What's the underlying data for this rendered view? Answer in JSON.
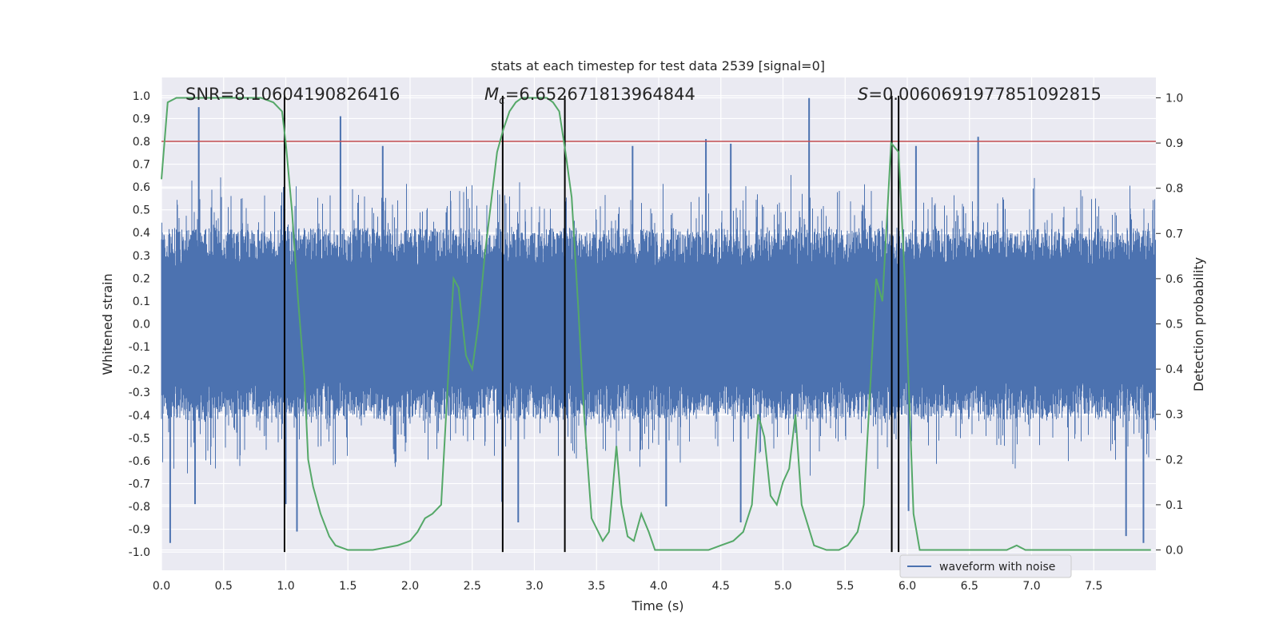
{
  "chart_data": {
    "type": "line",
    "title": "stats at each timestep for test data 2539 [signal=0]",
    "xlabel": "Time (s)",
    "ylabel": "Whitened strain",
    "y2label": "Detection probability",
    "xlim": [
      0,
      8.0
    ],
    "ylim": [
      -1.08,
      1.08
    ],
    "y2lim": [
      -0.045,
      1.045
    ],
    "x_ticks": [
      "0.0",
      "0.5",
      "1.0",
      "1.5",
      "2.0",
      "2.5",
      "3.0",
      "3.5",
      "4.0",
      "4.5",
      "5.0",
      "5.5",
      "6.0",
      "6.5",
      "7.0",
      "7.5"
    ],
    "y_ticks": [
      "1.0",
      "0.9",
      "0.8",
      "0.7",
      "0.6",
      "0.5",
      "0.4",
      "0.3",
      "0.2",
      "0.1",
      "0.0",
      "-0.1",
      "-0.2",
      "-0.3",
      "-0.4",
      "-0.5",
      "-0.6",
      "-0.7",
      "-0.8",
      "-0.9",
      "-1.0"
    ],
    "y2_ticks": [
      "1.0",
      "0.9",
      "0.8",
      "0.7",
      "0.6",
      "0.5",
      "0.4",
      "0.3",
      "0.2",
      "0.1",
      "0.0"
    ],
    "annotations": {
      "snr": "SNR=8.10604190826416",
      "mc_symbol": "M",
      "mc_sub": "c",
      "mc_value": "=6.652671813964844",
      "s_symbol": "S",
      "s_value": "=0.0060691977851092815"
    },
    "threshold": {
      "value": 0.8,
      "color": "#c44e52"
    },
    "vertical_lines": [
      0.99,
      2.745,
      3.245,
      5.875,
      5.93
    ],
    "legend": {
      "label": "waveform with noise",
      "position": "lower-right"
    },
    "grid": true,
    "colors": {
      "waveform": "#4c72b0",
      "probability": "#55a868",
      "threshold": "#c44e52",
      "vlines": "#000000",
      "background": "#eaeaf2"
    },
    "series": [
      {
        "name": "waveform with noise",
        "sampled": true,
        "seed": 2539,
        "amplitude_bulk": 0.22,
        "peaks": [
          [
            0.3,
            0.95
          ],
          [
            0.07,
            -0.96
          ],
          [
            0.27,
            -0.79
          ],
          [
            1.09,
            -0.91
          ],
          [
            1.44,
            0.91
          ],
          [
            1.0,
            -0.79
          ],
          [
            1.78,
            0.78
          ],
          [
            2.87,
            -0.87
          ],
          [
            3.79,
            0.78
          ],
          [
            4.06,
            -0.8
          ],
          [
            4.38,
            0.81
          ],
          [
            4.58,
            0.79
          ],
          [
            4.66,
            -0.87
          ],
          [
            5.21,
            0.99
          ],
          [
            6.01,
            -0.82
          ],
          [
            6.57,
            0.82
          ],
          [
            7.76,
            -0.93
          ],
          [
            7.9,
            -0.96
          ],
          [
            6.07,
            0.78
          ],
          [
            2.74,
            -0.78
          ]
        ]
      },
      {
        "name": "",
        "x": [
          0.0,
          0.05,
          0.12,
          0.3,
          0.5,
          0.7,
          0.8,
          0.9,
          0.97,
          1.0,
          1.05,
          1.1,
          1.15,
          1.18,
          1.22,
          1.28,
          1.35,
          1.4,
          1.5,
          1.7,
          1.9,
          2.0,
          2.06,
          2.12,
          2.18,
          2.25,
          2.3,
          2.35,
          2.39,
          2.45,
          2.5,
          2.55,
          2.6,
          2.7,
          2.75,
          2.8,
          2.85,
          2.9,
          2.95,
          3.0,
          3.1,
          3.15,
          3.2,
          3.25,
          3.3,
          3.35,
          3.4,
          3.46,
          3.55,
          3.6,
          3.66,
          3.7,
          3.75,
          3.8,
          3.86,
          3.92,
          3.97,
          4.02,
          4.1,
          4.2,
          4.4,
          4.5,
          4.6,
          4.68,
          4.75,
          4.8,
          4.85,
          4.9,
          4.95,
          5.0,
          5.05,
          5.1,
          5.15,
          5.25,
          5.35,
          5.45,
          5.52,
          5.6,
          5.65,
          5.75,
          5.8,
          5.87,
          5.93,
          5.98,
          6.05,
          6.1,
          6.2,
          6.4,
          6.6,
          6.8,
          6.88,
          6.95,
          7.1,
          7.3,
          7.5,
          7.6,
          7.75,
          7.85,
          7.96
        ],
        "values": [
          0.82,
          0.99,
          1.0,
          1.0,
          1.0,
          1.0,
          1.0,
          0.99,
          0.97,
          0.9,
          0.75,
          0.55,
          0.38,
          0.2,
          0.14,
          0.08,
          0.03,
          0.01,
          0.0,
          0.0,
          0.01,
          0.02,
          0.04,
          0.07,
          0.08,
          0.1,
          0.35,
          0.6,
          0.58,
          0.43,
          0.4,
          0.5,
          0.65,
          0.88,
          0.93,
          0.97,
          0.99,
          1.0,
          1.0,
          1.0,
          1.0,
          0.99,
          0.97,
          0.88,
          0.78,
          0.55,
          0.3,
          0.07,
          0.02,
          0.04,
          0.23,
          0.1,
          0.03,
          0.02,
          0.08,
          0.04,
          0.0,
          0.0,
          0.0,
          0.0,
          0.0,
          0.01,
          0.02,
          0.04,
          0.1,
          0.3,
          0.25,
          0.12,
          0.1,
          0.15,
          0.18,
          0.3,
          0.1,
          0.01,
          0.0,
          0.0,
          0.01,
          0.04,
          0.1,
          0.6,
          0.55,
          0.9,
          0.88,
          0.6,
          0.08,
          0.0,
          0.0,
          0.0,
          0.0,
          0.0,
          0.01,
          0.0,
          0.0,
          0.0,
          0.0,
          0.0,
          0.0,
          0.0,
          0.0
        ]
      }
    ]
  }
}
